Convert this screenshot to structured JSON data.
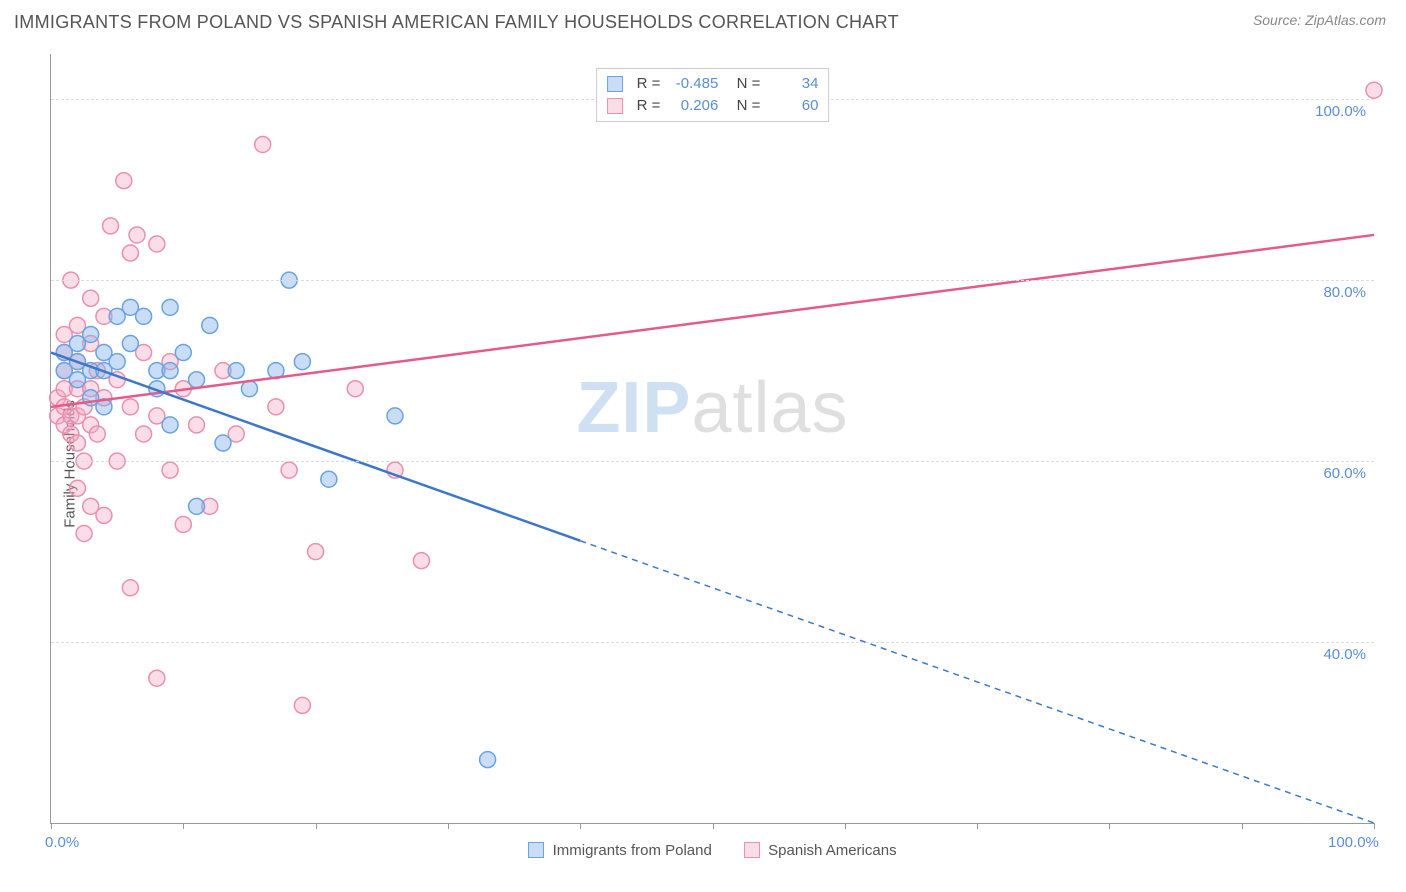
{
  "header": {
    "title": "IMMIGRANTS FROM POLAND VS SPANISH AMERICAN FAMILY HOUSEHOLDS CORRELATION CHART",
    "source_prefix": "Source: ",
    "source_name": "ZipAtlas.com"
  },
  "watermark": {
    "part1": "ZIP",
    "part2": "atlas"
  },
  "chart": {
    "type": "scatter",
    "background_color": "#ffffff",
    "grid_color": "#dddddd",
    "axis_color": "#999999",
    "xlim": [
      0,
      100
    ],
    "ylim": [
      20,
      105
    ],
    "x_ticks": [
      0,
      10,
      20,
      30,
      40,
      50,
      60,
      70,
      80,
      90,
      100
    ],
    "x_tick_labels": {
      "0": "0.0%",
      "100": "100.0%"
    },
    "y_ticks": [
      40,
      60,
      80,
      100
    ],
    "y_tick_labels": {
      "40": "40.0%",
      "60": "60.0%",
      "80": "80.0%",
      "100": "100.0%"
    },
    "y_axis_title": "Family Households",
    "tick_label_color": "#5b8dd6",
    "axis_title_color": "#555555",
    "marker_radius": 8,
    "marker_stroke_width": 1.5,
    "line_width": 2.5,
    "series": {
      "poland": {
        "label": "Immigrants from Poland",
        "fill": "rgba(135,180,235,0.45)",
        "stroke": "#6aa3e0",
        "line_color": "#3d78c7",
        "R": "-0.485",
        "N": "34",
        "trend": {
          "x1": 0,
          "y1": 72,
          "x2": 100,
          "y2": 20,
          "solid_until_x": 40
        },
        "points": [
          [
            1,
            70
          ],
          [
            1,
            72
          ],
          [
            2,
            71
          ],
          [
            2,
            69
          ],
          [
            2,
            73
          ],
          [
            3,
            70
          ],
          [
            3,
            67
          ],
          [
            3,
            74
          ],
          [
            4,
            70
          ],
          [
            4,
            66
          ],
          [
            5,
            76
          ],
          [
            5,
            71
          ],
          [
            6,
            77
          ],
          [
            6,
            73
          ],
          [
            7,
            76
          ],
          [
            8,
            70
          ],
          [
            8,
            68
          ],
          [
            9,
            77
          ],
          [
            9,
            70
          ],
          [
            10,
            72
          ],
          [
            11,
            55
          ],
          [
            11,
            69
          ],
          [
            12,
            75
          ],
          [
            13,
            62
          ],
          [
            14,
            70
          ],
          [
            15,
            68
          ],
          [
            17,
            70
          ],
          [
            18,
            80
          ],
          [
            19,
            71
          ],
          [
            21,
            58
          ],
          [
            26,
            65
          ],
          [
            9,
            64
          ],
          [
            4,
            72
          ],
          [
            33,
            27
          ]
        ]
      },
      "spanish": {
        "label": "Spanish Americans",
        "fill": "rgba(245,170,195,0.4)",
        "stroke": "#e890ad",
        "line_color": "#e65a8a",
        "R": "0.206",
        "N": "60",
        "trend": {
          "x1": 0,
          "y1": 66,
          "x2": 100,
          "y2": 85,
          "solid_until_x": 100
        },
        "points": [
          [
            0.5,
            65
          ],
          [
            0.5,
            67
          ],
          [
            1,
            64
          ],
          [
            1,
            66
          ],
          [
            1,
            68
          ],
          [
            1,
            70
          ],
          [
            1,
            72
          ],
          [
            1,
            74
          ],
          [
            1.5,
            63
          ],
          [
            1.5,
            65
          ],
          [
            1.5,
            80
          ],
          [
            2,
            57
          ],
          [
            2,
            62
          ],
          [
            2,
            65
          ],
          [
            2,
            68
          ],
          [
            2,
            71
          ],
          [
            2,
            75
          ],
          [
            2.5,
            52
          ],
          [
            2.5,
            60
          ],
          [
            2.5,
            66
          ],
          [
            3,
            55
          ],
          [
            3,
            64
          ],
          [
            3,
            68
          ],
          [
            3,
            73
          ],
          [
            3,
            78
          ],
          [
            3.5,
            63
          ],
          [
            3.5,
            70
          ],
          [
            4,
            54
          ],
          [
            4,
            67
          ],
          [
            4,
            76
          ],
          [
            4.5,
            86
          ],
          [
            5,
            60
          ],
          [
            5,
            69
          ],
          [
            5.5,
            91
          ],
          [
            6,
            46
          ],
          [
            6,
            66
          ],
          [
            6,
            83
          ],
          [
            6.5,
            85
          ],
          [
            7,
            63
          ],
          [
            7,
            72
          ],
          [
            8,
            36
          ],
          [
            8,
            65
          ],
          [
            8,
            84
          ],
          [
            9,
            59
          ],
          [
            9,
            71
          ],
          [
            10,
            53
          ],
          [
            10,
            68
          ],
          [
            11,
            64
          ],
          [
            12,
            55
          ],
          [
            13,
            70
          ],
          [
            14,
            63
          ],
          [
            16,
            95
          ],
          [
            17,
            66
          ],
          [
            18,
            59
          ],
          [
            19,
            33
          ],
          [
            20,
            50
          ],
          [
            23,
            68
          ],
          [
            26,
            59
          ],
          [
            28,
            49
          ],
          [
            100,
            101
          ]
        ]
      }
    },
    "legend_bottom": [
      {
        "series": "poland"
      },
      {
        "series": "spanish"
      }
    ]
  }
}
